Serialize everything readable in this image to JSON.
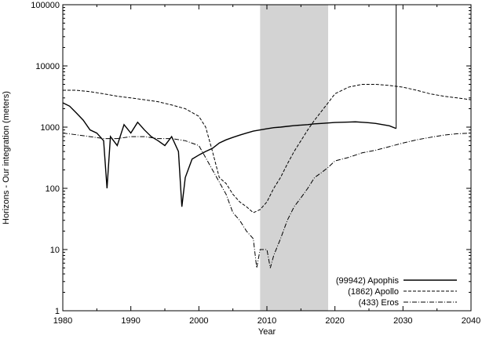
{
  "chart_data": {
    "type": "line",
    "xlabel": "Year",
    "ylabel": "Horizons - Our integration (meters)",
    "xlim": [
      1980,
      2040
    ],
    "ylim": [
      1,
      100000
    ],
    "yscale": "log",
    "grid": false,
    "legend_position": "bottom-right",
    "x_ticks": [
      "1980",
      "1990",
      "2000",
      "2010",
      "2020",
      "2030",
      "2040"
    ],
    "y_ticks": [
      "1",
      "10",
      "100",
      "1000",
      "10000",
      "100000"
    ],
    "shaded_region": {
      "x": [
        2009,
        2019
      ],
      "color": "#d3d3d3"
    },
    "series": [
      {
        "name": "(99942) Apophis",
        "style": "solid",
        "x": [
          1980,
          1981,
          1982,
          1983,
          1984,
          1985,
          1986,
          1986.5,
          1987,
          1988,
          1989,
          1990,
          1991,
          1992,
          1993,
          1994,
          1995,
          1996,
          1997,
          1997.5,
          1998,
          1999,
          2000,
          2001,
          2002,
          2003,
          2004,
          2005,
          2006,
          2007,
          2008,
          2009,
          2010,
          2011,
          2012,
          2013,
          2014,
          2015,
          2016,
          2017,
          2018,
          2019,
          2020,
          2021,
          2022,
          2023,
          2024,
          2025,
          2026,
          2027,
          2028,
          2029
        ],
        "values": [
          2500,
          2200,
          1700,
          1300,
          900,
          800,
          600,
          100,
          700,
          500,
          1100,
          800,
          1200,
          900,
          700,
          600,
          500,
          700,
          400,
          50,
          150,
          300,
          350,
          400,
          450,
          550,
          620,
          680,
          740,
          800,
          860,
          900,
          940,
          980,
          1000,
          1030,
          1060,
          1080,
          1100,
          1130,
          1150,
          1170,
          1190,
          1200,
          1210,
          1220,
          1200,
          1180,
          1150,
          1100,
          1050,
          950
        ]
      },
      {
        "name": "(1862) Apollo",
        "style": "dashed",
        "x": [
          1980,
          1982,
          1984,
          1986,
          1988,
          1990,
          1992,
          1994,
          1996,
          1998,
          2000,
          2001,
          2002,
          2003,
          2004,
          2005,
          2006,
          2007,
          2008,
          2009,
          2010,
          2011,
          2012,
          2013,
          2014,
          2015,
          2016,
          2017,
          2018,
          2019,
          2020,
          2022,
          2024,
          2026,
          2028,
          2030,
          2032,
          2034,
          2036,
          2038,
          2040
        ],
        "values": [
          4000,
          4000,
          3800,
          3500,
          3200,
          3000,
          2800,
          2600,
          2300,
          2000,
          1500,
          1000,
          400,
          150,
          120,
          80,
          60,
          50,
          40,
          45,
          60,
          100,
          150,
          250,
          400,
          600,
          900,
          1300,
          1800,
          2500,
          3500,
          4500,
          5000,
          5000,
          4800,
          4500,
          4000,
          3500,
          3200,
          3000,
          2800
        ]
      },
      {
        "name": "(433) Eros",
        "style": "dashdot",
        "x": [
          1980,
          1982,
          1984,
          1986,
          1988,
          1990,
          1992,
          1994,
          1996,
          1998,
          2000,
          2002,
          2004,
          2005,
          2006,
          2007,
          2008,
          2008.5,
          2009,
          2010,
          2010.5,
          2011,
          2012,
          2013,
          2014,
          2015,
          2016,
          2017,
          2018,
          2019,
          2020,
          2022,
          2024,
          2026,
          2028,
          2030,
          2032,
          2034,
          2036,
          2038,
          2040
        ],
        "values": [
          800,
          750,
          700,
          650,
          650,
          700,
          700,
          650,
          650,
          600,
          500,
          200,
          80,
          40,
          30,
          20,
          15,
          5,
          10,
          10,
          5,
          8,
          15,
          30,
          50,
          70,
          100,
          150,
          180,
          220,
          280,
          320,
          380,
          420,
          480,
          550,
          620,
          680,
          740,
          780,
          800
        ]
      }
    ],
    "annotations": [
      {
        "type": "vertical_line",
        "x": 2029
      }
    ]
  }
}
